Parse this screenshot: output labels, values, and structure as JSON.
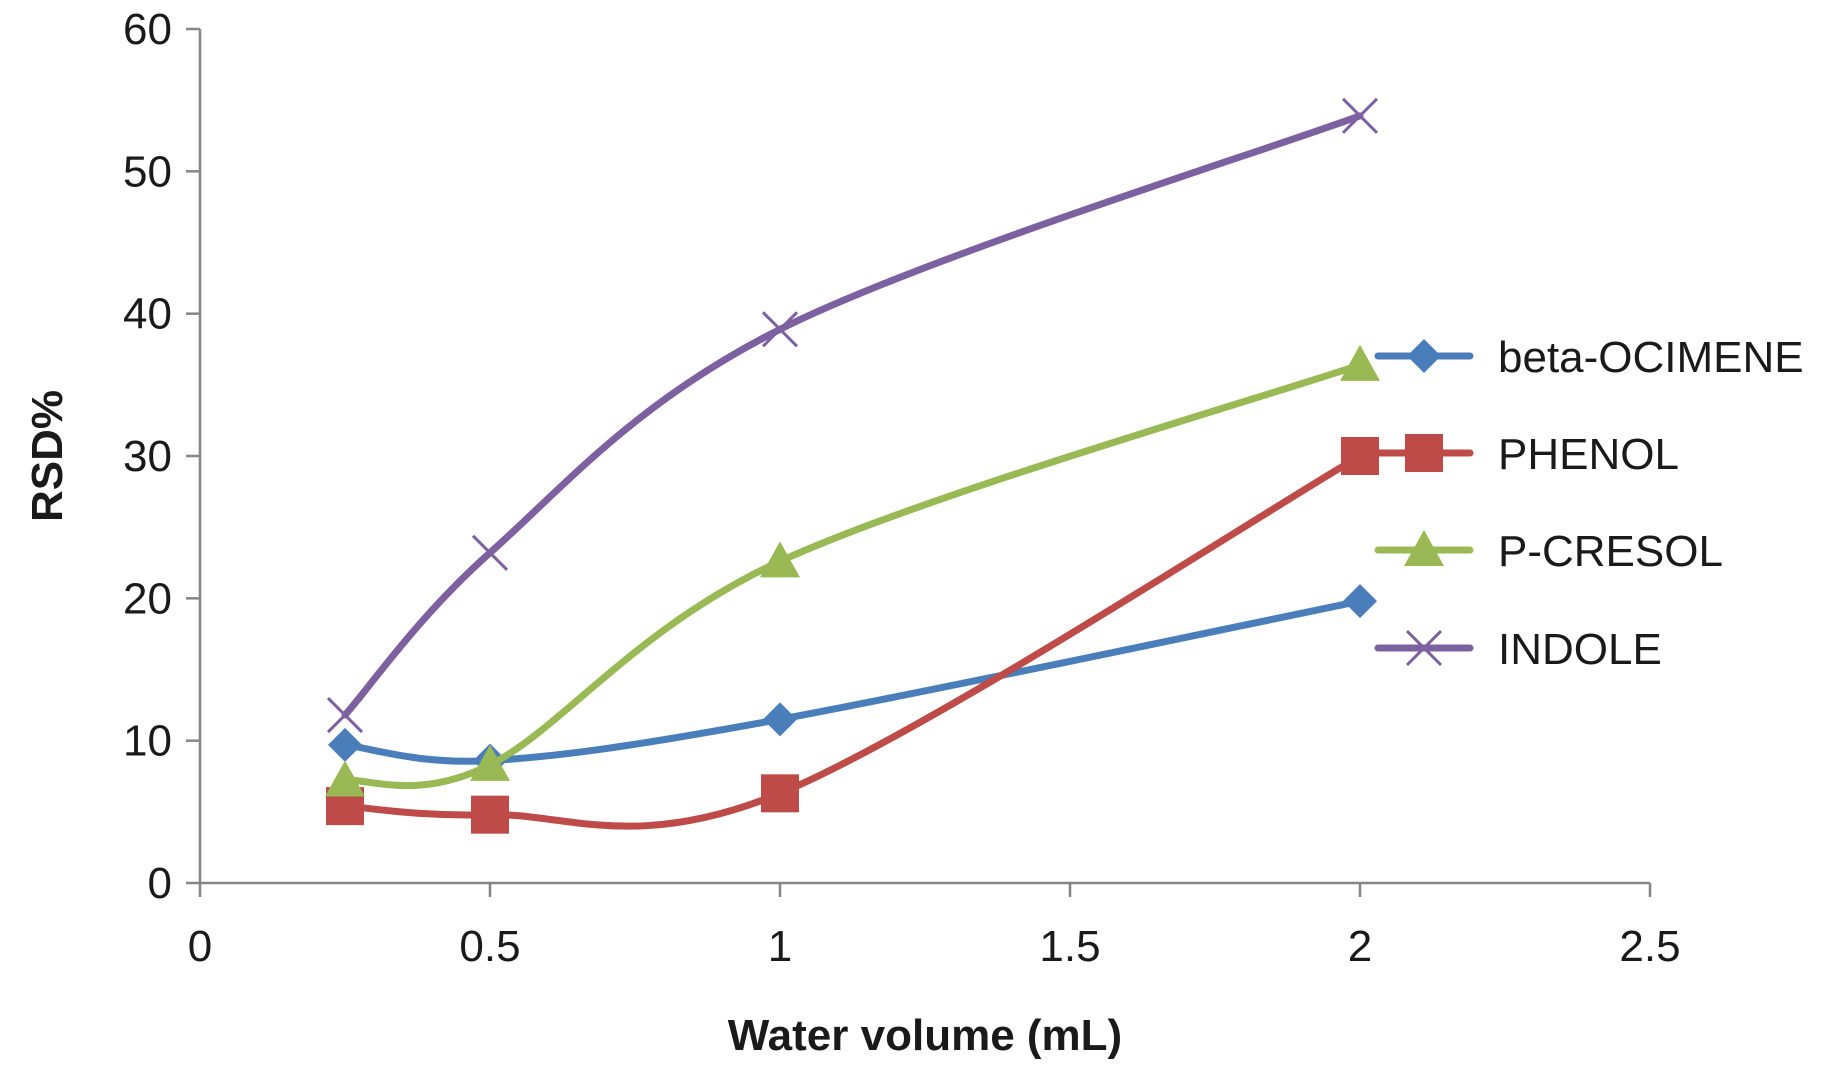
{
  "chart_data": {
    "type": "line",
    "smooth": true,
    "title": "",
    "xlabel": "Water volume (mL)",
    "ylabel": "RSD%",
    "xlim": [
      0,
      2.5
    ],
    "ylim": [
      0,
      60
    ],
    "x_ticks": [
      0,
      0.5,
      1,
      1.5,
      2,
      2.5
    ],
    "y_ticks": [
      0,
      10,
      20,
      30,
      40,
      50,
      60
    ],
    "x_tick_labels": [
      "0",
      "0.5",
      "1",
      "1.5",
      "2",
      "2.5"
    ],
    "y_tick_labels": [
      "0",
      "10",
      "20",
      "30",
      "40",
      "50",
      "60"
    ],
    "grid": false,
    "legend_position": "right",
    "x": [
      0.25,
      0.5,
      1,
      2
    ],
    "series": [
      {
        "name": "beta-OCIMENE",
        "values": [
          9.7,
          8.6,
          11.5,
          19.8
        ],
        "color": "#4a7ebb",
        "marker": "diamond"
      },
      {
        "name": "PHENOL",
        "values": [
          5.4,
          4.8,
          6.3,
          30.0
        ],
        "color": "#be4b48",
        "marker": "square"
      },
      {
        "name": "P-CRESOL",
        "values": [
          7.2,
          8.3,
          22.6,
          36.4
        ],
        "color": "#98b954",
        "marker": "triangle"
      },
      {
        "name": "INDOLE",
        "values": [
          11.8,
          23.2,
          38.9,
          53.9
        ],
        "color": "#7d60a0",
        "marker": "x"
      }
    ]
  }
}
